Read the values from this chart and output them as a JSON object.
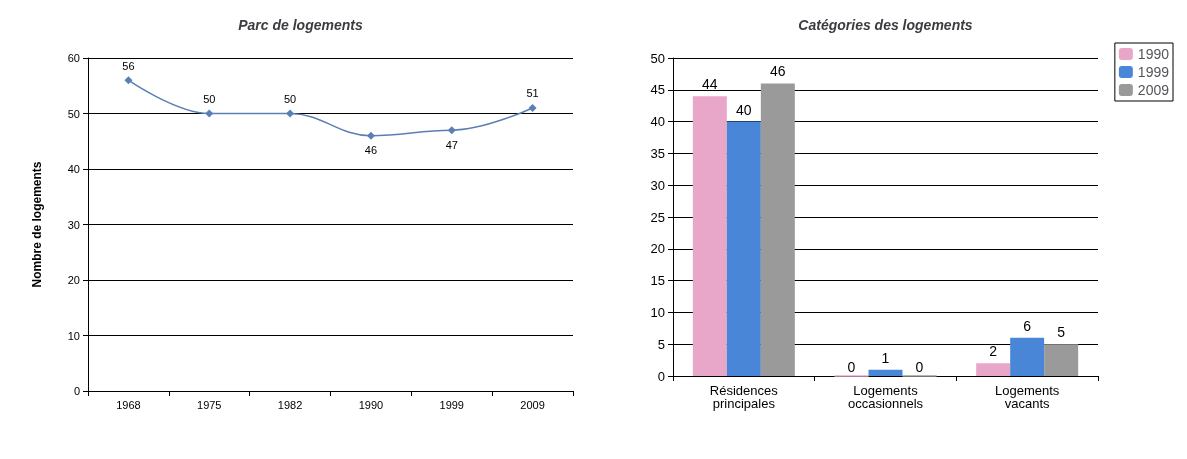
{
  "chart_data": [
    {
      "type": "line",
      "title": "Parc de logements",
      "ylabel": "Nombre de logements",
      "categories": [
        "1968",
        "1975",
        "1982",
        "1990",
        "1999",
        "2009"
      ],
      "series": [
        {
          "color": "#5b7fb5",
          "values": [
            56,
            50,
            50,
            46,
            47,
            51
          ]
        }
      ],
      "ylim": [
        0,
        60
      ],
      "yticks": [
        0,
        10,
        20,
        30,
        40,
        50,
        60
      ],
      "grid": "y",
      "marker": "diamond",
      "data_labels": true,
      "legend": false
    },
    {
      "type": "bar",
      "title": "Catégories des logements",
      "categories": [
        "Résidences principales",
        "Logements occasionnels",
        "Logements vacants"
      ],
      "series": [
        {
          "name": "1990",
          "color": "#e8a6c8",
          "values": [
            44,
            0,
            2
          ]
        },
        {
          "name": "1999",
          "color": "#4a86d8",
          "values": [
            40,
            1,
            6
          ]
        },
        {
          "name": "2009",
          "color": "#9a9a9a",
          "values": [
            46,
            0,
            5
          ]
        }
      ],
      "ylim": [
        0,
        50
      ],
      "yticks": [
        0,
        5,
        10,
        15,
        20,
        25,
        30,
        35,
        40,
        45,
        50
      ],
      "grid": "y",
      "data_labels": true,
      "legend": "top right"
    }
  ]
}
